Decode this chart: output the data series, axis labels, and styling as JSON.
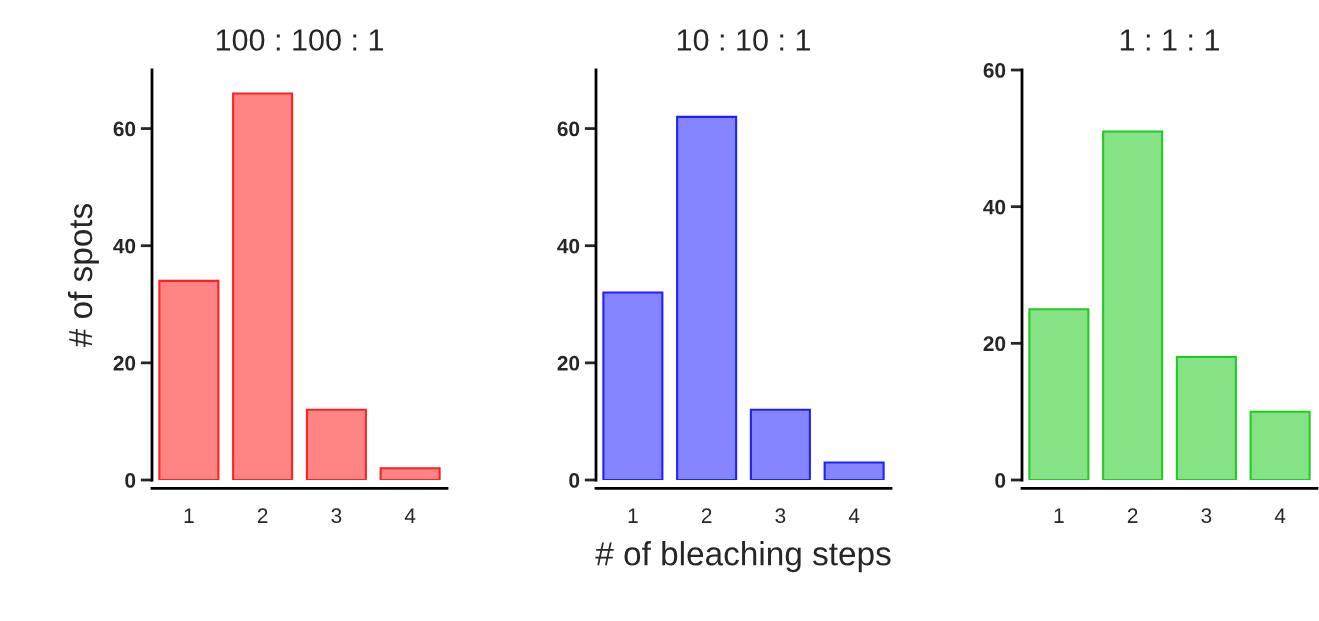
{
  "chart_data": [
    {
      "type": "bar",
      "title": "100 : 100 : 1",
      "ylabel": "# of spots",
      "categories": [
        "1",
        "2",
        "3",
        "4"
      ],
      "values": [
        34,
        66,
        12,
        2
      ],
      "color": "#ff2020",
      "ylim": [
        0,
        70
      ],
      "yticks": [
        0,
        20,
        40,
        60
      ],
      "grid": false
    },
    {
      "type": "bar",
      "title": "10 : 10 : 1",
      "xlabel": "# of bleaching steps",
      "categories": [
        "1",
        "2",
        "3",
        "4"
      ],
      "values": [
        32,
        62,
        12,
        3
      ],
      "color": "#2020ff",
      "ylim": [
        0,
        70
      ],
      "yticks": [
        0,
        20,
        40,
        60
      ],
      "grid": false
    },
    {
      "type": "bar",
      "title": "1 : 1 : 1",
      "categories": [
        "1",
        "2",
        "3",
        "4"
      ],
      "values": [
        25,
        51,
        18,
        10
      ],
      "color": "#20cc20",
      "ylim": [
        0,
        60
      ],
      "yticks": [
        0,
        20,
        40,
        60
      ],
      "grid": false
    }
  ]
}
